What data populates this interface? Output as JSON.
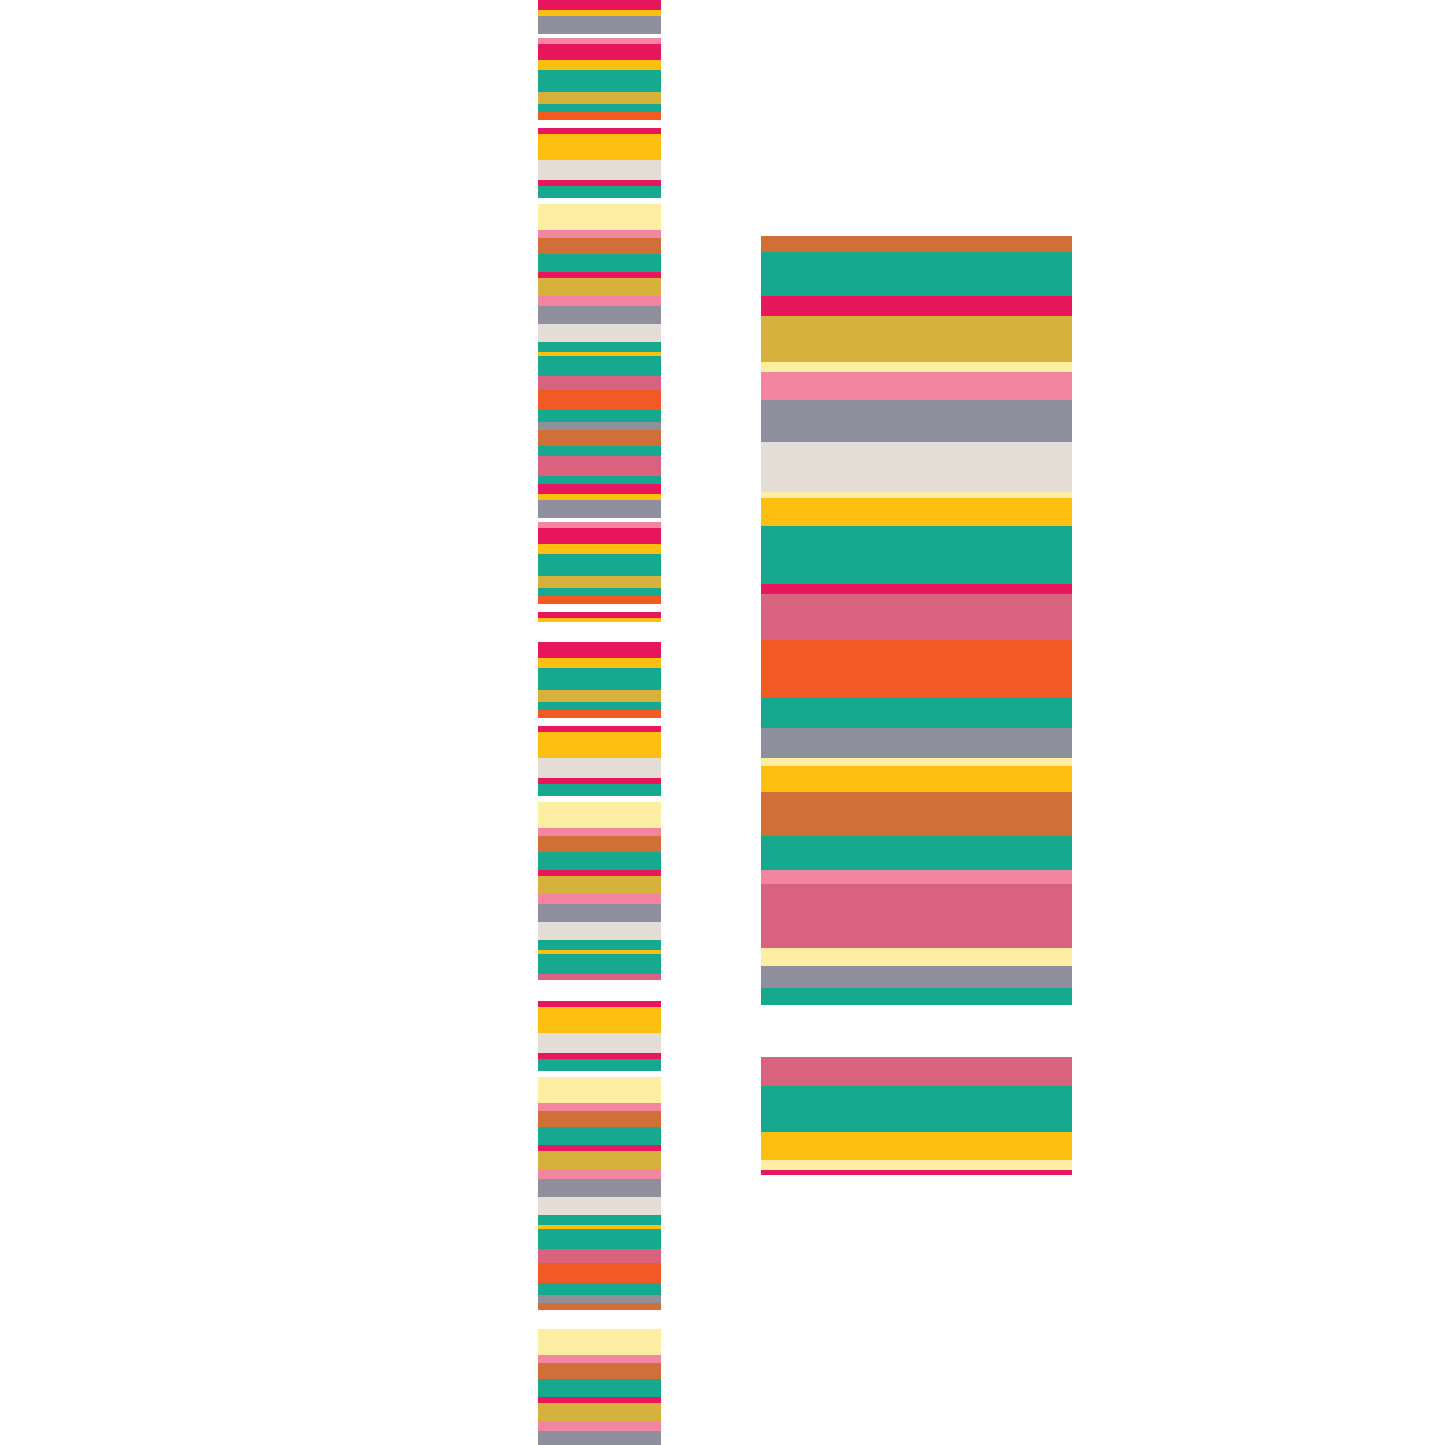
{
  "palette": {
    "pink": "#e8175d",
    "teal": "#17a98f",
    "yellow": "#fdc010",
    "pale_yellow": "#fdeea4",
    "gold": "#d6b23c",
    "gray": "#8f8f9e",
    "white_wood": "#e4ded6",
    "orange": "#f15a24",
    "brown_orange": "#d07038",
    "rose": "#d9627f",
    "light_pink": "#f286a0",
    "white": "#ffffff"
  }
}
